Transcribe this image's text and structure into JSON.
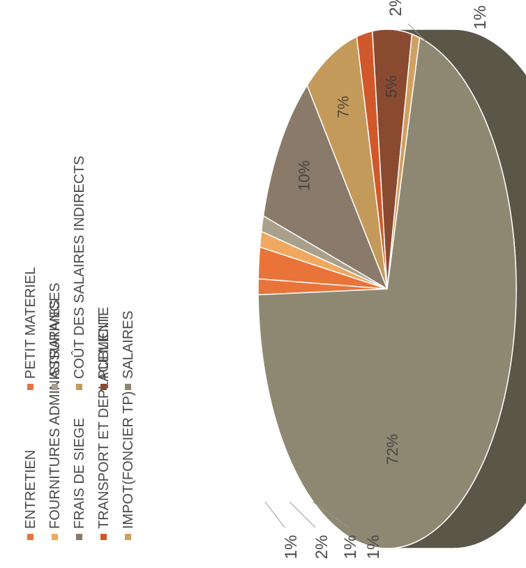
{
  "chart_data": {
    "type": "pie",
    "categories": [
      "ENTRETIEN",
      "PETIT MATERIEL",
      "FOURNITURES ADMINISTRATIVES",
      "ASSURANCES",
      "FRAIS DE SIEGE",
      "COÛT DES SALAIRES INDIRECTS",
      "TRANSPORT ET DEPLACEMENT",
      "PUBLICITE",
      "IMPOT(FONCIER TP)",
      "SALAIRES"
    ],
    "values": [
      1,
      2,
      1,
      1,
      10,
      7,
      2,
      5,
      1,
      72
    ],
    "data_labels": [
      "1%",
      "2%",
      "1%",
      "1%",
      "10%",
      "7%",
      "2%",
      "5%",
      "1%",
      "72%"
    ],
    "colors": [
      "#e8743a",
      "#e8743a",
      "#f0a860",
      "#a8a08a",
      "#8a7a6a",
      "#c49a5a",
      "#d0582a",
      "#8a4a30",
      "#d0a060",
      "#8e8872"
    ],
    "side_color": "#5a5648",
    "legend_position": "bottom",
    "orientation": "rotated 90° counter-clockwise",
    "style": "3d"
  }
}
